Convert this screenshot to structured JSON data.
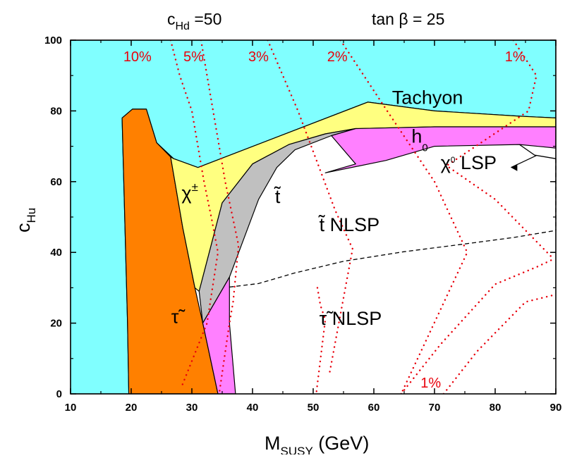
{
  "chart_data": {
    "type": "area",
    "title_left": "c",
    "title_left_sub": "Hd",
    "title_left_value": " =50",
    "title_right": "tan β = 25",
    "xlabel_main": "M",
    "xlabel_sub": "SUSY",
    "xlabel_unit": " (GeV)",
    "ylabel_main": "c",
    "ylabel_sub": "Hu",
    "xlim": [
      10,
      90
    ],
    "ylim": [
      0,
      100
    ],
    "xticks": [
      10,
      20,
      30,
      40,
      50,
      60,
      70,
      80,
      90
    ],
    "yticks": [
      0,
      20,
      40,
      60,
      80,
      100
    ],
    "grid": false,
    "colors": {
      "tachyon": "#80ffff",
      "stau": "#ff8000",
      "chargino": "#ffff80",
      "stop": "#c0c0c0",
      "higgs": "#ff80ff",
      "curves": "#e8000b"
    },
    "regions": [
      {
        "name": "tachyon",
        "label": "Tachyon",
        "label_at": [
          63,
          82
        ],
        "points": [
          [
            10,
            0
          ],
          [
            10,
            100
          ],
          [
            90,
            100
          ],
          [
            90,
            78
          ],
          [
            84,
            78.5
          ],
          [
            70,
            80
          ],
          [
            59,
            82.5
          ],
          [
            31,
            64
          ],
          [
            27,
            66.5
          ],
          [
            24.2,
            71
          ],
          [
            22.5,
            80.5
          ],
          [
            20.2,
            80.5
          ],
          [
            18.5,
            78
          ],
          [
            19.4,
            20
          ],
          [
            19.6,
            0
          ]
        ]
      },
      {
        "name": "stau",
        "label": "τ̃",
        "label_at": [
          26.6,
          20
        ],
        "points": [
          [
            19.6,
            0
          ],
          [
            19.4,
            20
          ],
          [
            18.5,
            78
          ],
          [
            20.2,
            80.5
          ],
          [
            22.5,
            80.5
          ],
          [
            24.2,
            71
          ],
          [
            26.5,
            67
          ],
          [
            28.5,
            47
          ],
          [
            30.5,
            30
          ],
          [
            31.8,
            20
          ],
          [
            34.3,
            0
          ]
        ]
      },
      {
        "name": "chargino",
        "label": "χ±",
        "label_at": [
          28.3,
          55
        ],
        "points": [
          [
            26.5,
            67
          ],
          [
            27,
            66.5
          ],
          [
            31,
            64
          ],
          [
            59,
            82.5
          ],
          [
            70,
            80
          ],
          [
            84,
            78.5
          ],
          [
            90,
            78
          ],
          [
            90,
            75.5
          ],
          [
            70,
            75.5
          ],
          [
            57,
            75
          ],
          [
            52,
            73.5
          ],
          [
            46,
            70.5
          ],
          [
            40,
            65
          ],
          [
            35,
            54
          ],
          [
            31.2,
            29
          ],
          [
            30.5,
            30
          ],
          [
            28.5,
            47
          ]
        ]
      },
      {
        "name": "stop",
        "label": "t̃",
        "label_at": [
          43.7,
          54
        ],
        "points": [
          [
            31.2,
            29
          ],
          [
            35,
            54
          ],
          [
            40,
            65
          ],
          [
            46,
            70.5
          ],
          [
            52,
            73.5
          ],
          [
            57,
            75
          ],
          [
            53,
            73
          ],
          [
            47,
            69
          ],
          [
            44,
            64
          ],
          [
            41,
            55
          ],
          [
            36.2,
            33
          ],
          [
            31.8,
            20
          ]
        ]
      },
      {
        "name": "higgs",
        "label": "h0",
        "label_at": [
          66.2,
          71
        ],
        "points": [
          [
            57,
            75
          ],
          [
            70,
            75.5
          ],
          [
            90,
            75.5
          ],
          [
            90,
            69.5
          ],
          [
            84,
            70.5
          ],
          [
            70,
            70
          ],
          [
            62,
            66
          ],
          [
            52,
            62.5
          ],
          [
            57,
            65
          ],
          [
            53,
            73
          ]
        ]
      },
      {
        "name": "stau-lower-sliver",
        "label": "",
        "points": [
          [
            31.8,
            20
          ],
          [
            36.2,
            33
          ],
          [
            36.2,
            20
          ],
          [
            37.2,
            0
          ],
          [
            34.3,
            0
          ]
        ]
      }
    ],
    "boundary_curves": [
      {
        "name": "chi0-lsp-boundary",
        "style": "solid",
        "points": [
          [
            84,
            70.5
          ],
          [
            86.5,
            67.5
          ],
          [
            90,
            66.5
          ]
        ]
      },
      {
        "name": "stop-stau-divide",
        "style": "dashed",
        "points": [
          [
            36.2,
            30.2
          ],
          [
            41,
            31.2
          ],
          [
            47,
            34.2
          ],
          [
            55,
            37.5
          ],
          [
            65,
            40.2
          ],
          [
            75,
            42.4
          ],
          [
            83,
            44.2
          ],
          [
            90,
            46.2
          ]
        ]
      },
      {
        "name": "right-edge-dashed",
        "style": "dashed",
        "points": [
          [
            90,
            66.5
          ],
          [
            90,
            46.2
          ]
        ]
      }
    ],
    "tuning_curves": [
      {
        "label": "10%",
        "label_at": [
          18.7,
          94
        ],
        "points": [
          [
            26.5,
            100
          ],
          [
            28,
            90
          ],
          [
            30,
            80
          ],
          [
            32,
            60
          ],
          [
            33.2,
            50
          ],
          [
            34.3,
            40
          ],
          [
            32.5,
            20
          ],
          [
            28.3,
            2
          ]
        ]
      },
      {
        "label": "5%",
        "label_at": [
          28.6,
          94
        ],
        "points": [
          [
            31.5,
            100
          ],
          [
            33.5,
            80
          ],
          [
            35.5,
            60
          ],
          [
            37.7,
            42
          ],
          [
            36.8,
            26
          ],
          [
            36.2,
            20
          ],
          [
            34.5,
            0
          ]
        ]
      },
      {
        "label": "3%",
        "label_at": [
          39.3,
          94
        ],
        "points": [
          [
            42.5,
            100
          ],
          [
            47.5,
            80
          ],
          [
            53.6,
            52
          ],
          [
            56.5,
            41
          ],
          [
            52.6,
            5
          ]
        ]
      },
      {
        "label": "2%",
        "label_at": [
          52.3,
          94
        ],
        "points": [
          [
            54.5,
            100
          ],
          [
            62.2,
            80
          ],
          [
            70,
            60
          ],
          [
            75.4,
            40
          ],
          [
            64.5,
            0
          ]
        ]
      },
      {
        "label": "1%",
        "label_at": [
          81.6,
          94
        ],
        "points": [
          [
            83,
            100
          ],
          [
            86.8,
            90
          ],
          [
            85.5,
            80
          ],
          [
            72,
            64.5
          ],
          [
            80,
            55
          ],
          [
            89.7,
            38
          ]
        ]
      },
      {
        "label": "",
        "points": [
          [
            50.7,
            30
          ],
          [
            51.2,
            25
          ],
          [
            52,
            21
          ],
          [
            50.5,
            0
          ]
        ]
      },
      {
        "label": "",
        "points": [
          [
            64.5,
            0
          ],
          [
            71,
            14
          ],
          [
            80,
            31
          ],
          [
            87,
            36
          ],
          [
            89.5,
            38
          ]
        ]
      },
      {
        "label": "1%",
        "label_at": [
          67.7,
          1.8
        ],
        "points": [
          [
            71.5,
            0
          ],
          [
            77,
            12
          ],
          [
            85,
            26
          ],
          [
            89.8,
            28
          ]
        ]
      }
    ],
    "annotations": [
      {
        "label": "t̃ NLSP",
        "label_at": [
          51,
          46
        ]
      },
      {
        "label": "τ̃ NLSP",
        "label_at": [
          51,
          19.5
        ]
      },
      {
        "label": "χ0 LSP",
        "label_at": [
          71,
          63.5
        ]
      }
    ]
  }
}
